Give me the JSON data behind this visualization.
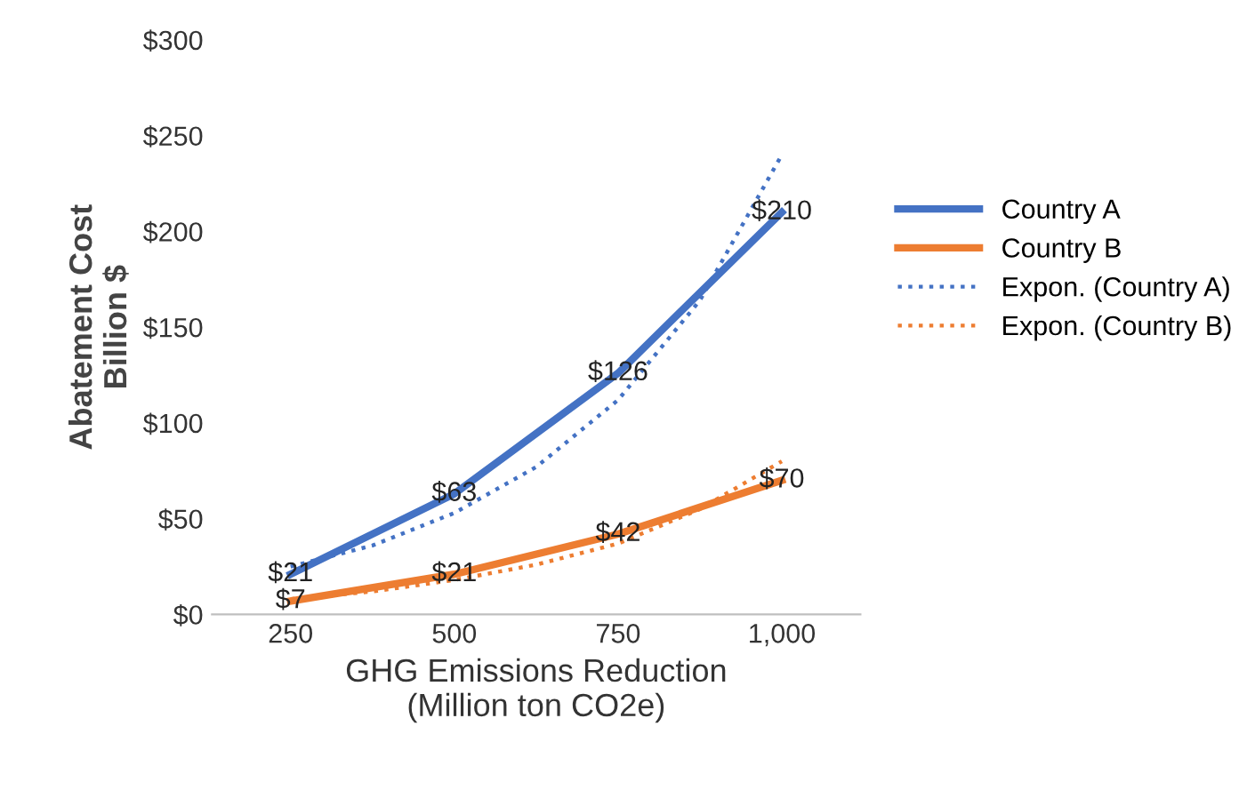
{
  "chart_data": {
    "type": "line",
    "xlabel": "GHG Emissions Reduction\n(Million ton CO2e)",
    "ylabel": "Abatement Cost\nBillion $",
    "x": [
      250,
      500,
      750,
      1000
    ],
    "xlim": [
      130,
      1120
    ],
    "xticks": [
      250,
      500,
      750,
      {
        "value": 1000,
        "label": "1,000"
      }
    ],
    "ylim": [
      0,
      300
    ],
    "yticks": [
      {
        "value": 0,
        "label": "$0"
      },
      {
        "value": 50,
        "label": "$50"
      },
      {
        "value": 100,
        "label": "$100"
      },
      {
        "value": 150,
        "label": "$150"
      },
      {
        "value": 200,
        "label": "$200"
      },
      {
        "value": 250,
        "label": "$250"
      },
      {
        "value": 300,
        "label": "$300"
      }
    ],
    "grid": false,
    "legend": "right",
    "marker": "none",
    "series": [
      {
        "name": "Country A",
        "color": "#4472c4",
        "values": [
          21,
          63,
          126,
          210
        ],
        "value_labels": [
          "$21",
          "$63",
          "$126",
          "$210"
        ]
      },
      {
        "name": "Country B",
        "color": "#ed7d31",
        "values": [
          7,
          21,
          42,
          70
        ],
        "value_labels": [
          "$7",
          "$21",
          "$42",
          "$70"
        ]
      },
      {
        "name": "Expon. (Country A)",
        "color": "#4472c4",
        "line_style": "dotted",
        "x": [
          250,
          375,
          500,
          625,
          750,
          875,
          1000
        ],
        "values": [
          25,
          36,
          53,
          77,
          112,
          164,
          240
        ]
      },
      {
        "name": "Expon. (Country B)",
        "color": "#ed7d31",
        "line_style": "dotted",
        "x": [
          250,
          375,
          500,
          625,
          750,
          875,
          1000
        ],
        "values": [
          8,
          12,
          18,
          26,
          37,
          55,
          80
        ]
      }
    ]
  }
}
